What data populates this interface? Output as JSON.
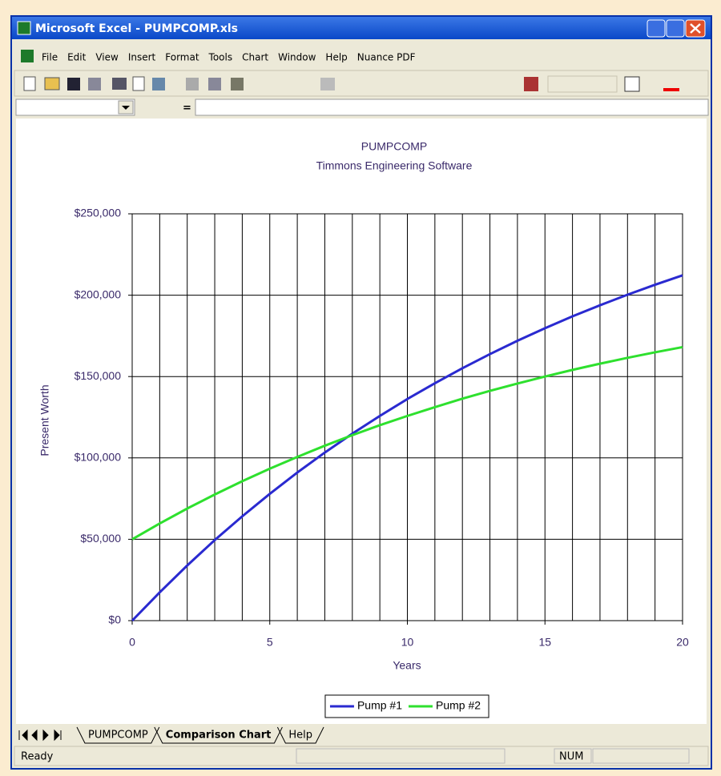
{
  "window": {
    "title": "Microsoft Excel - PUMPCOMP.xls",
    "menu": [
      "File",
      "Edit",
      "View",
      "Insert",
      "Format",
      "Tools",
      "Chart",
      "Window",
      "Help",
      "Nuance PDF"
    ],
    "formula_bar": {
      "equals": "="
    },
    "sheet_tabs": [
      "PUMPCOMP",
      "Comparison Chart",
      "Help"
    ],
    "status": {
      "left": "Ready",
      "indicator": "NUM"
    }
  },
  "chart_data": {
    "type": "line",
    "title": "PUMPCOMP",
    "subtitle": "Timmons Engineering Software",
    "x_label": "Years",
    "y_label": "Present Worth",
    "x": [
      0,
      1,
      2,
      3,
      4,
      5,
      6,
      7,
      8,
      9,
      10,
      11,
      12,
      13,
      14,
      15,
      16,
      17,
      18,
      19,
      20
    ],
    "series": [
      {
        "name": "Pump #1",
        "color": "#2a2ad0",
        "values": [
          0,
          17400,
          33900,
          49500,
          64100,
          77900,
          91000,
          103300,
          114900,
          125800,
          136200,
          145900,
          155100,
          163800,
          172000,
          179700,
          187000,
          193800,
          200300,
          206400,
          212200
        ]
      },
      {
        "name": "Pump #2",
        "color": "#2ee02e",
        "values": [
          50000,
          59700,
          68900,
          77500,
          85700,
          93400,
          100600,
          107500,
          114000,
          120100,
          125800,
          131200,
          136400,
          141200,
          145700,
          150000,
          154100,
          157900,
          161500,
          164900,
          168100
        ]
      }
    ],
    "xlim": [
      0,
      20
    ],
    "xticks": [
      0,
      5,
      10,
      15,
      20
    ],
    "ylim": [
      0,
      250000
    ],
    "yticks": [
      {
        "value": 0,
        "label": "$0"
      },
      {
        "value": 50000,
        "label": "$50,000"
      },
      {
        "value": 100000,
        "label": "$100,000"
      },
      {
        "value": 150000,
        "label": "$150,000"
      },
      {
        "value": 200000,
        "label": "$200,000"
      },
      {
        "value": 250000,
        "label": "$250,000"
      }
    ],
    "grid": true,
    "legend": "bottom"
  }
}
